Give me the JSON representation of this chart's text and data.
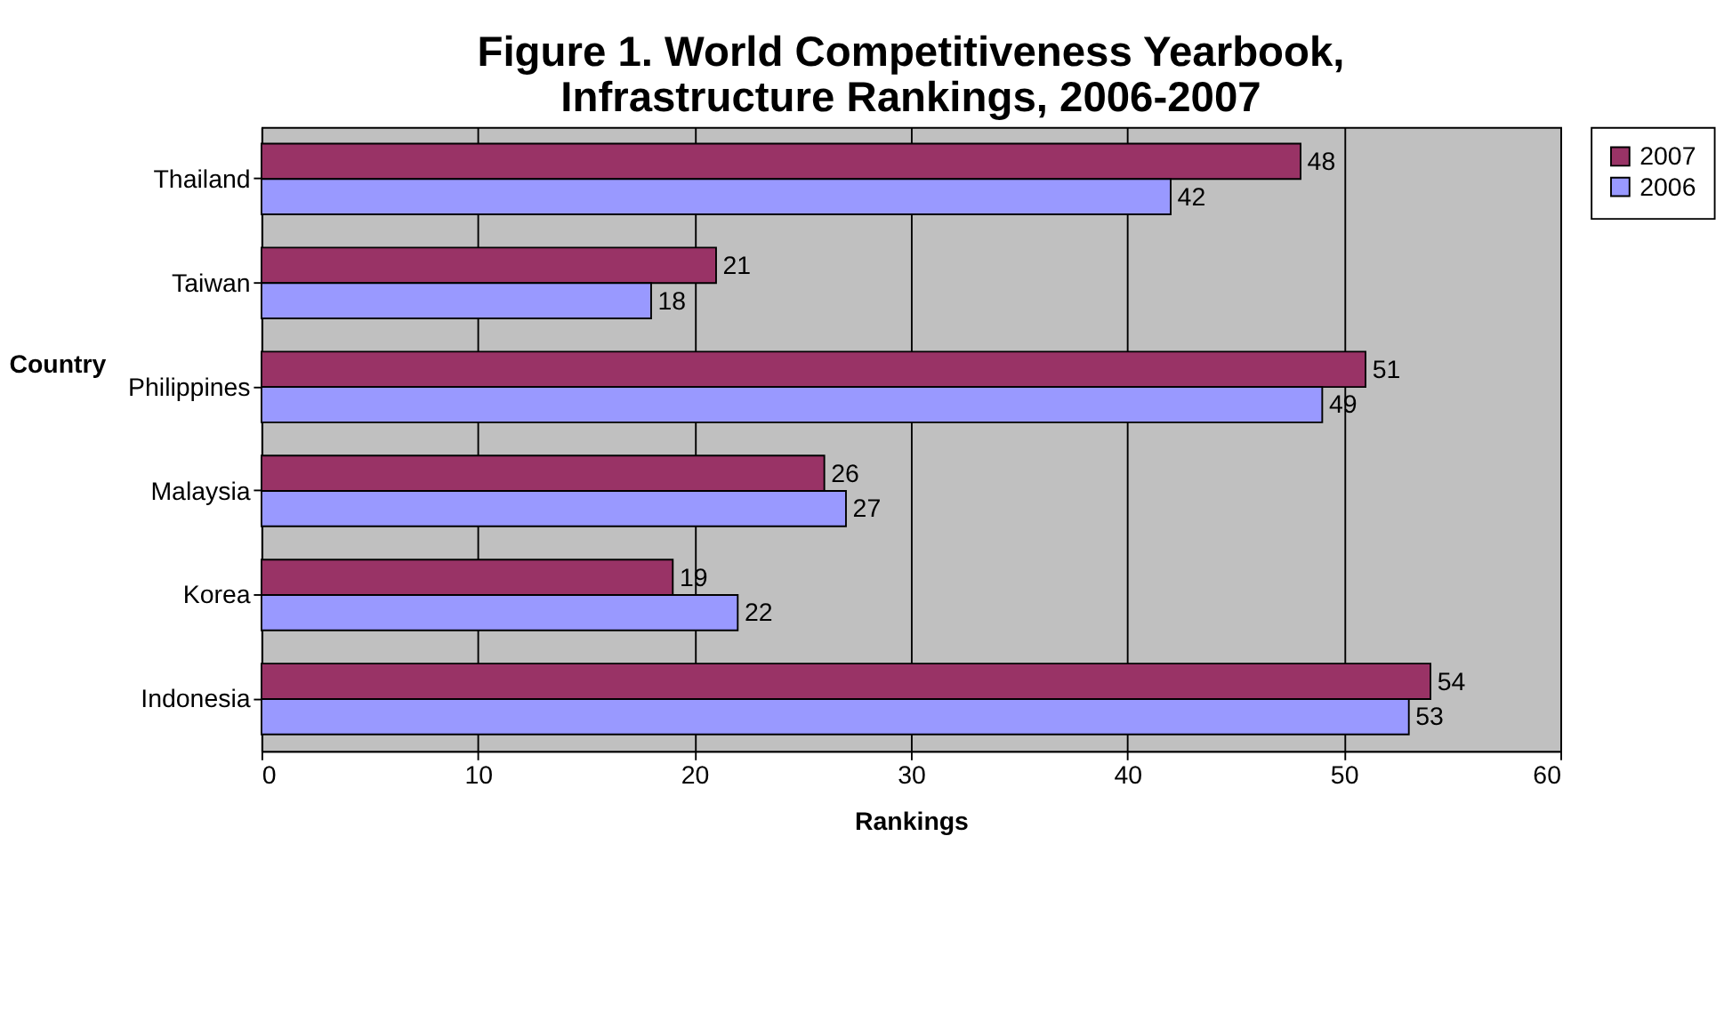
{
  "chart_data": {
    "type": "bar",
    "orientation": "horizontal",
    "title": "Figure 1. World Competitiveness Yearbook, Infrastructure Rankings, 2006-2007",
    "xlabel": "Rankings",
    "ylabel": "Country",
    "categories": [
      "Thailand",
      "Taiwan",
      "Philippines",
      "Malaysia",
      "Korea",
      "Indonesia"
    ],
    "series": [
      {
        "name": "2007",
        "color": "#993366",
        "values": [
          48,
          21,
          51,
          26,
          19,
          54
        ]
      },
      {
        "name": "2006",
        "color": "#9999ff",
        "values": [
          42,
          18,
          49,
          27,
          22,
          53
        ]
      }
    ],
    "xlim": [
      0,
      60
    ],
    "xticks": [
      0,
      10,
      20,
      30,
      40,
      50,
      60
    ],
    "grid": "x",
    "legend": "right",
    "data_labels": true
  }
}
